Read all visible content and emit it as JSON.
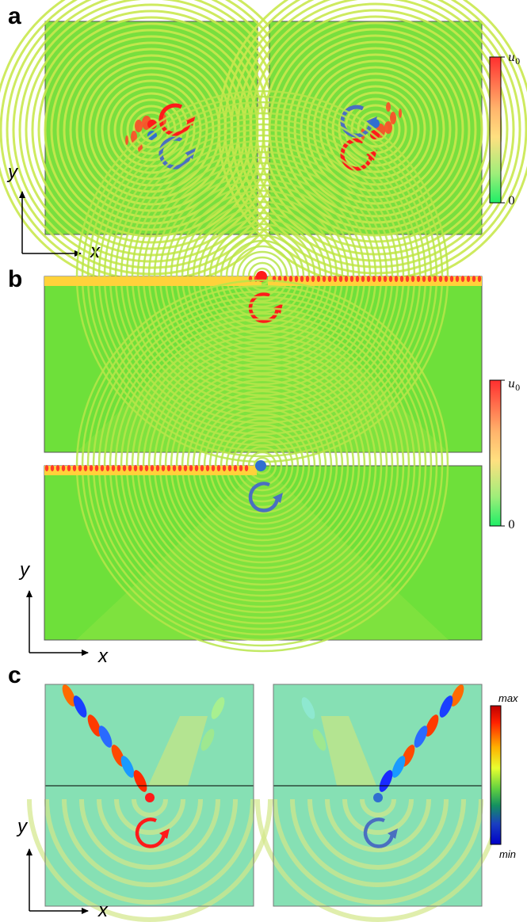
{
  "panels": {
    "a": {
      "letter": "a"
    },
    "b": {
      "letter": "b"
    },
    "c": {
      "letter": "c"
    }
  },
  "axes": {
    "x_label": "x",
    "y_label": "y"
  },
  "colorbars": {
    "a": {
      "top": "u0",
      "bottom": "0"
    },
    "b": {
      "top": "u0",
      "bottom": "0"
    },
    "c": {
      "top": "max",
      "bottom": "min"
    }
  },
  "colors": {
    "field_green": "#5fe03a",
    "wave_yellow": "#c8e84a",
    "red_source": "#ff1a1a",
    "blue_source": "#3b6fc4",
    "cbar_top": "#ff3a3a",
    "cbar_mid": "#ffe070",
    "cbar_bottom": "#22ee66",
    "jet_bg": "#8fe0b4"
  },
  "icons": {
    "red_rotation": "counterclockwise-arrow-icon",
    "blue_rotation": "counterclockwise-arrow-icon"
  }
}
